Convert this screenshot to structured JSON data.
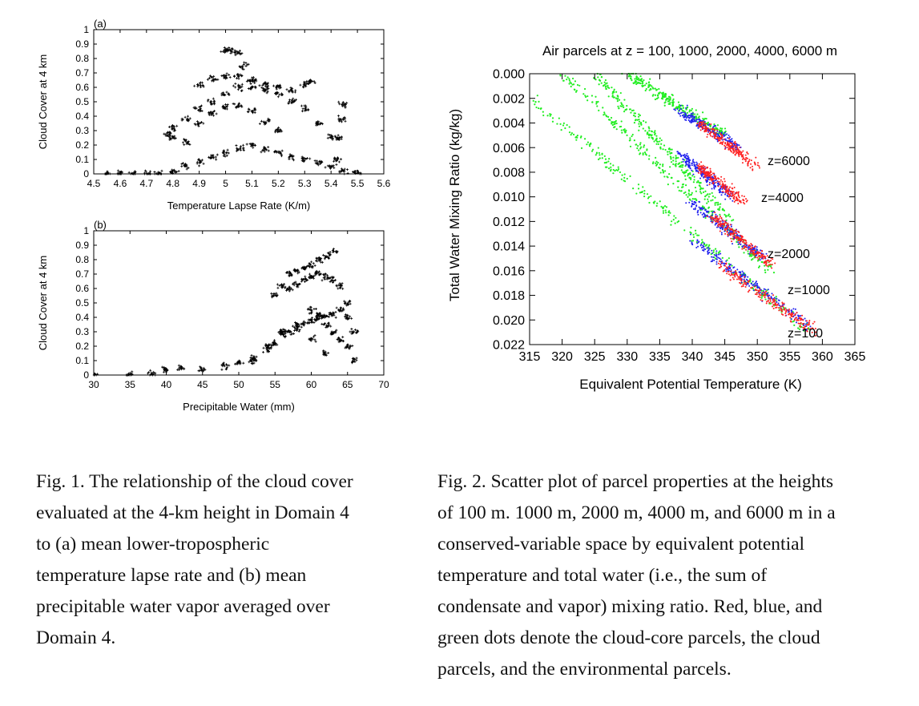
{
  "fig1": {
    "panel_a": {
      "panel_label": "(a)",
      "ylabel": "Cloud Cover at 4 km",
      "xlabel": "Temperature Lapse Rate (K/m)",
      "xticks": [
        "4.5",
        "4.6",
        "4.7",
        "4.8",
        "4.9",
        "5",
        "5.1",
        "5.2",
        "5.3",
        "5.4",
        "5.5",
        "5.6"
      ],
      "yticks": [
        "0",
        "0.1",
        "0.2",
        "0.3",
        "0.4",
        "0.5",
        "0.6",
        "0.7",
        "0.8",
        "0.9",
        "1"
      ]
    },
    "panel_b": {
      "panel_label": "(b)",
      "ylabel": "Cloud Cover at 4 km",
      "xlabel": "Precipitable Water (mm)",
      "xticks": [
        "30",
        "35",
        "40",
        "45",
        "50",
        "55",
        "60",
        "65",
        "70"
      ],
      "yticks": [
        "0",
        "0.1",
        "0.2",
        "0.3",
        "0.4",
        "0.5",
        "0.6",
        "0.7",
        "0.8",
        "0.9",
        "1"
      ]
    },
    "caption_lines": [
      "Fig. 1. The relationship of the cloud cover",
      "evaluated at the 4-km height in Domain 4",
      "to (a) mean lower-tropospheric",
      "temperature lapse rate and (b) mean",
      "precipitable water vapor averaged over",
      "Domain 4."
    ]
  },
  "fig2": {
    "title": "Air parcels at z = 100, 1000, 2000, 4000, 6000 m",
    "ylabel": "Total Water Mixing Ratio (kg/kg)",
    "xlabel": "Equivalent Potential Temperature (K)",
    "xticks": [
      "315",
      "320",
      "325",
      "330",
      "335",
      "340",
      "345",
      "350",
      "355",
      "360",
      "365"
    ],
    "yticks": [
      "0.000",
      "0.002",
      "0.004",
      "0.006",
      "0.008",
      "0.010",
      "0.012",
      "0.014",
      "0.016",
      "0.018",
      "0.020",
      "0.022"
    ],
    "annotations": [
      "z=6000",
      "z=4000",
      "z=2000",
      "z=1000",
      "z=100"
    ],
    "colors": {
      "core": "#ff2020",
      "cloud": "#2020ee",
      "env": "#22ee22"
    },
    "caption_lines": [
      "Fig. 2. Scatter plot of parcel properties at the heights",
      "of 100 m. 1000 m, 2000 m, 4000 m, and 6000 m in a",
      "conserved-variable space by equivalent potential",
      "temperature and total water (i.e., the sum of",
      "condensate and vapor) mixing ratio. Red, blue, and",
      "green dots denote the cloud-core parcels, the cloud",
      "parcels, and the environmental parcels."
    ]
  },
  "chart_data": [
    {
      "type": "scatter",
      "title": "",
      "xlabel": "Temperature Lapse Rate (K/m)",
      "ylabel": "Cloud Cover at 4 km",
      "xlim": [
        4.5,
        5.6
      ],
      "ylim": [
        0,
        1
      ],
      "grid": false,
      "series": [
        {
          "x": [
            4.55,
            4.6,
            4.65,
            4.7,
            4.75,
            4.8,
            4.85,
            4.9,
            4.95,
            5.0,
            5.05,
            5.1,
            5.15,
            5.2,
            5.25,
            5.3,
            5.35,
            5.4,
            5.45,
            5.5,
            4.8,
            4.85,
            4.9,
            4.95,
            5.0,
            5.05,
            5.1,
            5.15,
            5.2,
            5.25,
            5.3,
            5.35,
            5.4,
            4.78,
            4.8,
            4.85,
            4.9,
            4.95,
            5.0,
            5.05,
            5.1,
            5.15,
            5.2,
            5.0,
            5.02,
            5.05,
            5.07,
            5.1,
            4.9,
            4.95,
            5.0,
            5.05,
            5.1,
            5.15,
            5.2,
            5.25,
            5.3,
            5.32,
            5.42,
            5.43,
            5.44,
            5.45
          ],
          "y": [
            0,
            0,
            0,
            0,
            0,
            0.02,
            0.05,
            0.08,
            0.12,
            0.15,
            0.18,
            0.2,
            0.17,
            0.15,
            0.12,
            0.1,
            0.08,
            0.05,
            0.02,
            0.01,
            0.32,
            0.38,
            0.45,
            0.5,
            0.55,
            0.6,
            0.6,
            0.58,
            0.55,
            0.5,
            0.45,
            0.35,
            0.25,
            0.28,
            0.25,
            0.22,
            0.35,
            0.42,
            0.46,
            0.47,
            0.44,
            0.36,
            0.3,
            0.85,
            0.86,
            0.84,
            0.75,
            0.65,
            0.62,
            0.66,
            0.68,
            0.68,
            0.65,
            0.62,
            0.6,
            0.58,
            0.62,
            0.64,
            0.1,
            0.25,
            0.38,
            0.48
          ]
        }
      ]
    },
    {
      "type": "scatter",
      "title": "",
      "xlabel": "Precipitable Water (mm)",
      "ylabel": "Cloud Cover at 4 km",
      "xlim": [
        30,
        70
      ],
      "ylim": [
        0,
        1
      ],
      "grid": false,
      "series": [
        {
          "x": [
            30,
            35,
            38,
            40,
            42,
            45,
            48,
            50,
            52,
            54,
            55,
            56,
            57,
            58,
            59,
            60,
            61,
            62,
            63,
            64,
            65,
            66,
            55,
            56,
            57,
            58,
            59,
            60,
            61,
            62,
            63,
            57,
            58,
            59,
            60,
            61,
            62,
            63,
            64,
            65,
            60,
            61,
            62,
            63,
            64,
            65,
            66,
            52,
            54,
            56,
            58,
            60,
            62
          ],
          "y": [
            0,
            0,
            0.01,
            0.04,
            0.05,
            0.04,
            0.06,
            0.08,
            0.12,
            0.18,
            0.22,
            0.28,
            0.3,
            0.32,
            0.35,
            0.38,
            0.4,
            0.35,
            0.3,
            0.25,
            0.2,
            0.1,
            0.55,
            0.62,
            0.7,
            0.72,
            0.74,
            0.76,
            0.8,
            0.82,
            0.86,
            0.6,
            0.63,
            0.66,
            0.68,
            0.7,
            0.68,
            0.66,
            0.62,
            0.5,
            0.45,
            0.42,
            0.4,
            0.42,
            0.45,
            0.4,
            0.3,
            0.1,
            0.2,
            0.3,
            0.35,
            0.25,
            0.15
          ]
        }
      ]
    },
    {
      "type": "scatter",
      "title": "Air parcels at z = 100, 1000, 2000, 4000, 6000 m",
      "xlabel": "Equivalent Potential Temperature (K)",
      "ylabel": "Total Water Mixing Ratio (kg/kg)",
      "xlim": [
        315,
        365
      ],
      "ylim": [
        0.022,
        0.0
      ],
      "grid": false,
      "series": [
        {
          "name": "environmental parcels",
          "color": "#22ee22",
          "bands": [
            {
              "x0": 315,
              "y0": 0.002,
              "x1": 358,
              "y1": 0.021
            },
            {
              "x0": 320,
              "y0": 0.0,
              "x1": 352,
              "y1": 0.016
            },
            {
              "x0": 325,
              "y0": 0.0,
              "x1": 346,
              "y1": 0.012
            },
            {
              "x0": 330,
              "y0": 0.0,
              "x1": 345,
              "y1": 0.005
            }
          ]
        },
        {
          "name": "cloud parcels",
          "color": "#2020ee",
          "bands": [
            {
              "x0": 340,
              "y0": 0.0135,
              "x1": 358,
              "y1": 0.0205
            },
            {
              "x0": 340,
              "y0": 0.0105,
              "x1": 351,
              "y1": 0.015
            },
            {
              "x0": 338,
              "y0": 0.0065,
              "x1": 346,
              "y1": 0.01
            },
            {
              "x0": 338,
              "y0": 0.003,
              "x1": 347,
              "y1": 0.006
            }
          ]
        },
        {
          "name": "cloud-core parcels",
          "color": "#ff2020",
          "bands": [
            {
              "x0": 344,
              "y0": 0.0155,
              "x1": 359,
              "y1": 0.021
            },
            {
              "x0": 343,
              "y0": 0.0115,
              "x1": 352,
              "y1": 0.0155
            },
            {
              "x0": 341,
              "y0": 0.0075,
              "x1": 348,
              "y1": 0.0105
            },
            {
              "x0": 341,
              "y0": 0.004,
              "x1": 350,
              "y1": 0.0075
            }
          ]
        }
      ]
    }
  ]
}
